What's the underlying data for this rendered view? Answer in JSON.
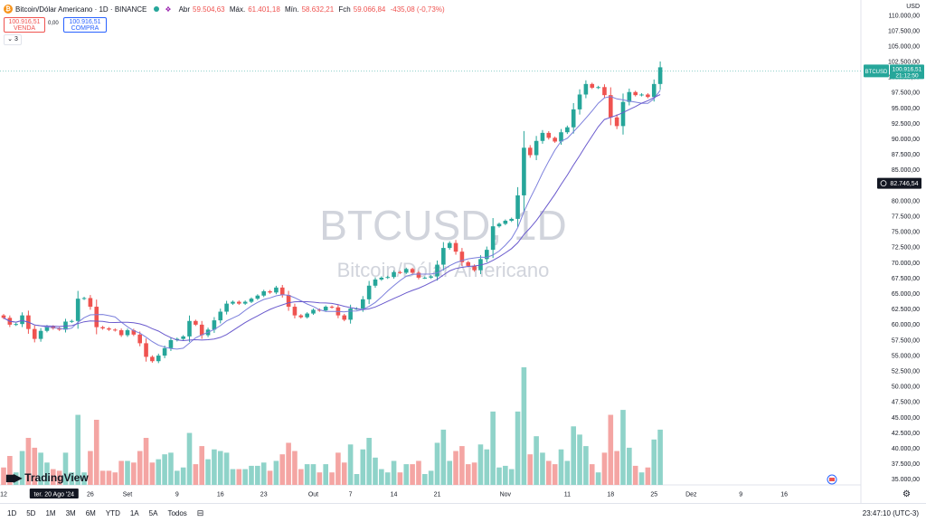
{
  "header": {
    "coin_icon": "bitcoin-icon",
    "symbol": "Bitcoin/Dólar Americano · 1D · BINANCE",
    "open_label": "Abr",
    "open": "59.504,63",
    "high_label": "Máx.",
    "high": "61.401,18",
    "low_label": "Mín.",
    "low": "58.632,21",
    "close_label": "Fch",
    "close": "59.066,84",
    "change": "-435,08 (-0,73%)"
  },
  "trade": {
    "sell_price": "100.916,51",
    "sell_label": "VENDA",
    "spread": "0,00",
    "buy_price": "100.916,51",
    "buy_label": "COMPRA",
    "indicators_count": "3"
  },
  "watermark": {
    "title": "BTCUSD, 1D",
    "subtitle": "Bitcoin/Dólar Americano"
  },
  "price_labels": {
    "last_symbol": "BTCUSD",
    "last_price": "100.916,51",
    "countdown": "21:12:50",
    "crosshair_price": "82.746,54"
  },
  "footer": {
    "brand": "TradingView",
    "ranges": [
      "1D",
      "5D",
      "1M",
      "3M",
      "6M",
      "YTD",
      "1A",
      "5A",
      "Todos"
    ],
    "time": "23:47:10 (UTC-3)",
    "currency": "USD"
  },
  "colors": {
    "up": "#26a69a",
    "down": "#ef5350",
    "ma_fast": "#7b7fdc",
    "ma_slow": "#6a5acd",
    "vol_up": "#8fd3c9",
    "vol_down": "#f4a5a3"
  },
  "chart_data": {
    "type": "candlestick",
    "y_axis_ticks": [
      "110.000,00",
      "107.500,00",
      "105.000,00",
      "102.500,00",
      "100.000,00",
      "97.500,00",
      "95.000,00",
      "92.500,00",
      "90.000,00",
      "87.500,00",
      "85.000,00",
      "82.500,00",
      "80.000,00",
      "77.500,00",
      "75.000,00",
      "72.500,00",
      "70.000,00",
      "67.500,00",
      "65.000,00",
      "62.500,00",
      "60.000,00",
      "57.500,00",
      "55.000,00",
      "52.500,00",
      "50.000,00",
      "47.500,00",
      "45.000,00",
      "42.500,00",
      "40.000,00",
      "37.500,00",
      "35.000,00"
    ],
    "ylim": [
      34000,
      111500
    ],
    "x_axis_ticks": [
      {
        "label": "12",
        "day": 0
      },
      {
        "label": "ter. 20 Ago '24",
        "day": 8
      },
      {
        "label": "26",
        "day": 14
      },
      {
        "label": "Set",
        "day": 20
      },
      {
        "label": "9",
        "day": 28
      },
      {
        "label": "16",
        "day": 35
      },
      {
        "label": "23",
        "day": 42
      },
      {
        "label": "Out",
        "day": 50
      },
      {
        "label": "7",
        "day": 56
      },
      {
        "label": "14",
        "day": 63
      },
      {
        "label": "21",
        "day": 70
      },
      {
        "label": "Nov",
        "day": 81
      },
      {
        "label": "11",
        "day": 91
      },
      {
        "label": "18",
        "day": 98
      },
      {
        "label": "25",
        "day": 105
      },
      {
        "label": "Dez",
        "day": 111
      },
      {
        "label": "9",
        "day": 119
      },
      {
        "label": "16",
        "day": 126
      }
    ],
    "closes": [
      61000,
      59900,
      60000,
      61400,
      59200,
      57600,
      58900,
      59600,
      59300,
      59100,
      60400,
      60500,
      64100,
      64200,
      62800,
      59500,
      59300,
      59100,
      59000,
      58200,
      59000,
      58300,
      56900,
      54700,
      54000,
      54900,
      56100,
      57400,
      57600,
      58000,
      60500,
      59900,
      58200,
      59100,
      60600,
      62000,
      63300,
      63600,
      63300,
      63600,
      64100,
      64600,
      65300,
      65100,
      65900,
      64700,
      62800,
      61400,
      61100,
      61700,
      62300,
      62200,
      62800,
      62700,
      61400,
      60700,
      62500,
      62500,
      64000,
      66200,
      67200,
      67500,
      67600,
      68400,
      68300,
      68900,
      68300,
      67500,
      67500,
      67700,
      69600,
      72300,
      73100,
      71700,
      70000,
      69400,
      68700,
      70500,
      72000,
      75800,
      76200,
      76700,
      77000,
      80800,
      88500,
      87300,
      89600,
      90900,
      90100,
      89500,
      91000,
      91800,
      94700,
      97100,
      98800,
      98200,
      98300,
      97000,
      93400,
      92000,
      95900,
      97500,
      97000,
      97100,
      96700,
      98800,
      101500
    ]
  }
}
